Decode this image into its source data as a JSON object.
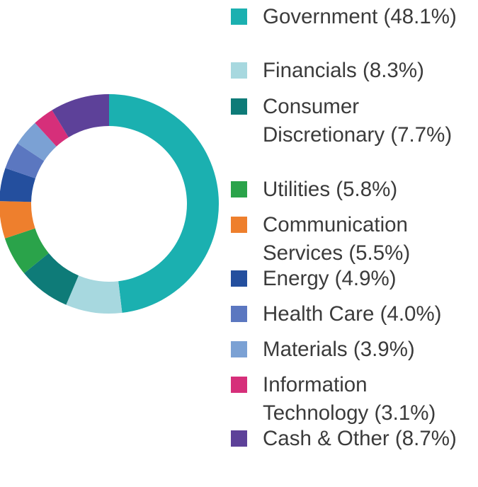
{
  "chart_data": {
    "type": "pie",
    "variant": "donut",
    "title": "",
    "legend_position": "right",
    "categories": [
      "Government (48.1%)",
      "Financials (8.3%)",
      "Consumer Discretionary (7.7%)",
      "Utilities (5.8%)",
      "Communication Services (5.5%)",
      "Energy (4.9%)",
      "Health Care (4.0%)",
      "Materials (3.9%)",
      "Information Technology (3.1%)",
      "Cash & Other (8.7%)"
    ],
    "values": [
      48.1,
      8.3,
      7.7,
      5.8,
      5.5,
      4.9,
      4.0,
      3.9,
      3.1,
      8.7
    ],
    "colors": [
      "#1bb0b0",
      "#a7d8df",
      "#0e7b78",
      "#2aa34a",
      "#ee7f2d",
      "#244f9e",
      "#5b77c0",
      "#7ba1d4",
      "#d62f7a",
      "#5d4199"
    ]
  }
}
